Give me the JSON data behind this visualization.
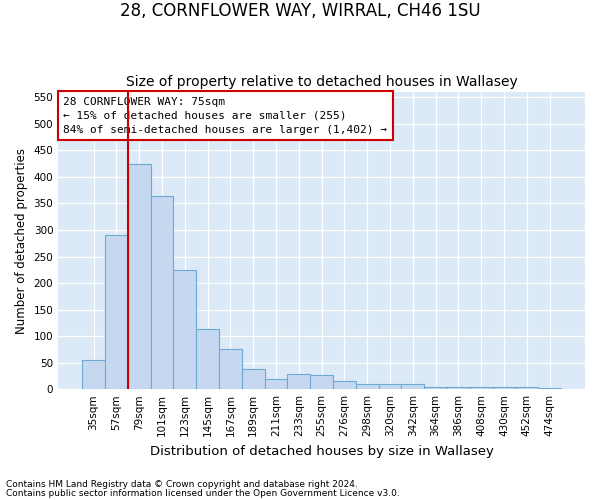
{
  "title": "28, CORNFLOWER WAY, WIRRAL, CH46 1SU",
  "subtitle": "Size of property relative to detached houses in Wallasey",
  "xlabel": "Distribution of detached houses by size in Wallasey",
  "ylabel": "Number of detached properties",
  "footnote1": "Contains HM Land Registry data © Crown copyright and database right 2024.",
  "footnote2": "Contains public sector information licensed under the Open Government Licence v3.0.",
  "bar_labels": [
    "35sqm",
    "57sqm",
    "79sqm",
    "101sqm",
    "123sqm",
    "145sqm",
    "167sqm",
    "189sqm",
    "211sqm",
    "233sqm",
    "255sqm",
    "276sqm",
    "298sqm",
    "320sqm",
    "342sqm",
    "364sqm",
    "386sqm",
    "408sqm",
    "430sqm",
    "452sqm",
    "474sqm"
  ],
  "bar_values": [
    55,
    290,
    425,
    365,
    225,
    113,
    75,
    38,
    20,
    28,
    27,
    16,
    9,
    9,
    9,
    5,
    4,
    4,
    4,
    4,
    3
  ],
  "bar_color": "#c5d8f0",
  "bar_edge_color": "#6aaad4",
  "fig_background_color": "#ffffff",
  "plot_background_color": "#dce9f7",
  "grid_color": "#ffffff",
  "vline_x": 2.0,
  "vline_color": "#cc0000",
  "annotation_text": "28 CORNFLOWER WAY: 75sqm\n← 15% of detached houses are smaller (255)\n84% of semi-detached houses are larger (1,402) →",
  "annotation_box_color": "#cc0000",
  "ylim": [
    0,
    560
  ],
  "yticks": [
    0,
    50,
    100,
    150,
    200,
    250,
    300,
    350,
    400,
    450,
    500,
    550
  ],
  "title_fontsize": 12,
  "subtitle_fontsize": 10,
  "xlabel_fontsize": 9.5,
  "ylabel_fontsize": 8.5,
  "tick_fontsize": 7.5,
  "annotation_fontsize": 8,
  "footnote_fontsize": 6.5
}
